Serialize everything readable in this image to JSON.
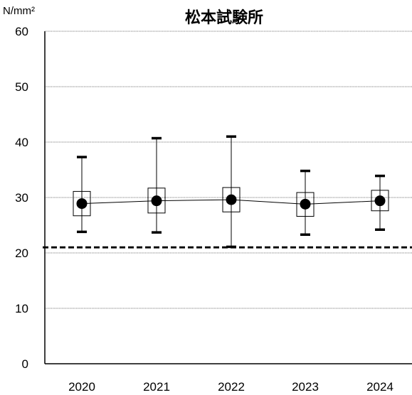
{
  "chart_data": {
    "type": "box",
    "title": "松本試験所",
    "ylabel": "N/mm²",
    "ylim": [
      0,
      60
    ],
    "yticks": [
      0,
      10,
      20,
      30,
      40,
      50,
      60
    ],
    "grid": true,
    "categories": [
      "2020",
      "2021",
      "2022",
      "2023",
      "2024"
    ],
    "series": [
      {
        "mean": [
          28.9,
          29.4,
          29.6,
          28.8,
          29.4
        ],
        "box_low": [
          26.7,
          27.2,
          27.4,
          26.6,
          27.6
        ],
        "box_high": [
          31.1,
          31.7,
          31.8,
          30.9,
          31.3
        ],
        "min": [
          23.8,
          23.7,
          21.1,
          23.3,
          24.2
        ],
        "max": [
          37.3,
          40.7,
          41.0,
          34.8,
          33.9
        ]
      }
    ],
    "reference_line": {
      "value": 21,
      "style": "dashed"
    }
  }
}
